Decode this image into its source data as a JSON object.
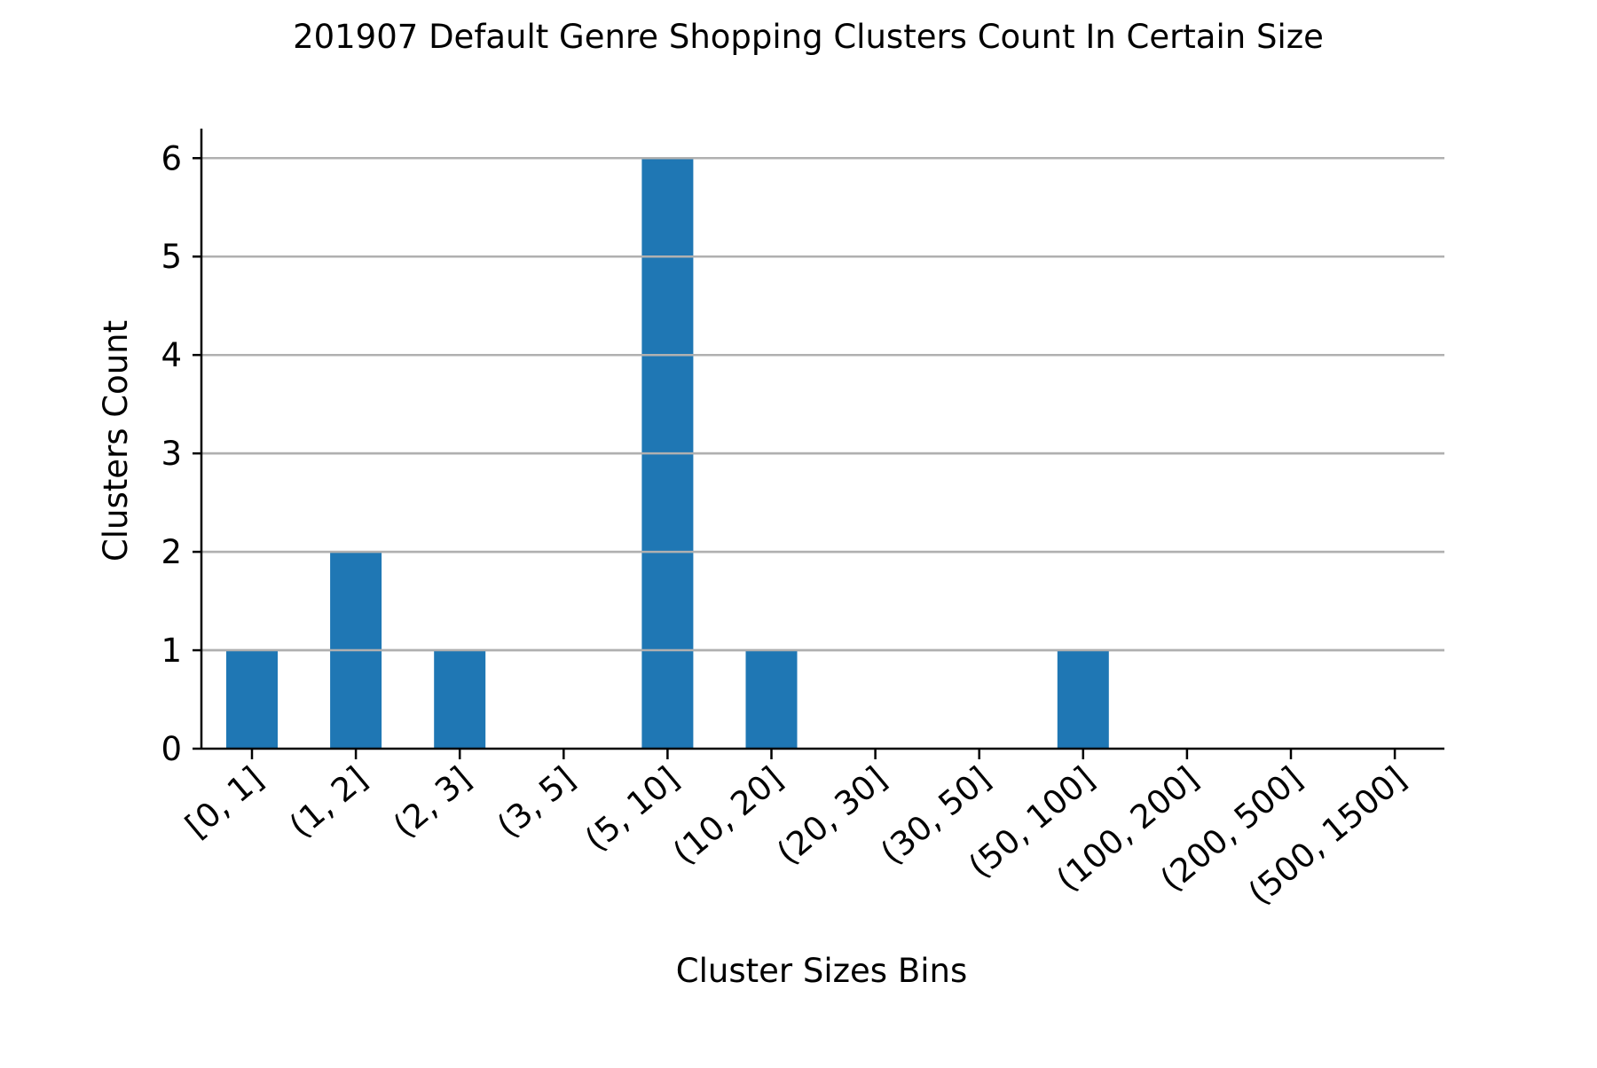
{
  "chart_data": {
    "type": "bar",
    "title": "201907 Default Genre Shopping Clusters Count In Certain Size",
    "xlabel": "Cluster Sizes Bins",
    "ylabel": "Clusters Count",
    "categories": [
      "[0, 1]",
      "(1, 2]",
      "(2, 3]",
      "(3, 5]",
      "(5, 10]",
      "(10, 20]",
      "(20, 30]",
      "(30, 50]",
      "(50, 100]",
      "(100, 200]",
      "(200, 500]",
      "(500, 1500]"
    ],
    "values": [
      1,
      2,
      1,
      0,
      6,
      1,
      0,
      0,
      1,
      0,
      0,
      0
    ],
    "ylim": [
      0,
      6.3
    ],
    "yticks": [
      0,
      1,
      2,
      3,
      4,
      5,
      6
    ],
    "grid": "horizontal",
    "x_tick_rotation_deg": 40,
    "colors": {
      "bar": "#1f77b4",
      "grid": "#b0b0b0",
      "axis": "#000000"
    }
  }
}
